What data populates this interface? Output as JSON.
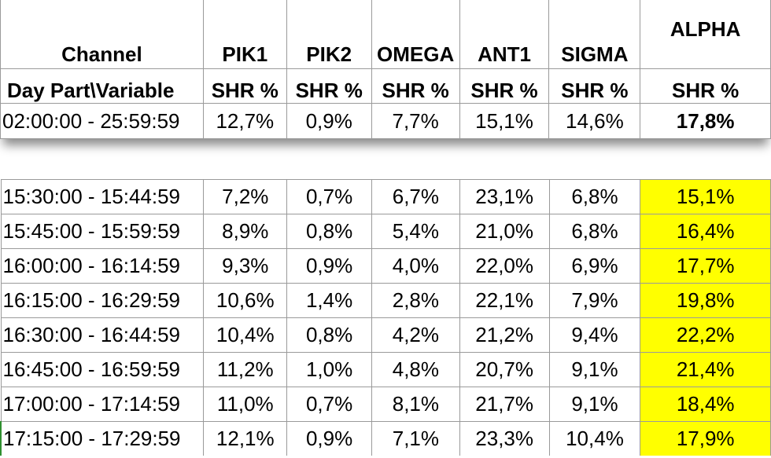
{
  "header": {
    "channel_label": "Channel",
    "day_part_label": "Day Part\\Variable",
    "channels": [
      "PIK1",
      "PIK2",
      "OMEGA",
      "ANT1",
      "SIGMA",
      "ALPHA"
    ],
    "metric_label": "SHR %"
  },
  "total_row": {
    "day_part": "02:00:00 - 25:59:59",
    "values": [
      "12,7%",
      "0,9%",
      "7,7%",
      "15,1%",
      "14,6%",
      "17,8%"
    ]
  },
  "rows": [
    {
      "day_part": "15:30:00 - 15:44:59",
      "values": [
        "7,2%",
        "0,7%",
        "6,7%",
        "23,1%",
        "6,8%",
        "15,1%"
      ]
    },
    {
      "day_part": "15:45:00 - 15:59:59",
      "values": [
        "8,9%",
        "0,8%",
        "5,4%",
        "21,0%",
        "6,8%",
        "16,4%"
      ]
    },
    {
      "day_part": "16:00:00 - 16:14:59",
      "values": [
        "9,3%",
        "0,9%",
        "4,0%",
        "22,0%",
        "6,9%",
        "17,7%"
      ]
    },
    {
      "day_part": "16:15:00 - 16:29:59",
      "values": [
        "10,6%",
        "1,4%",
        "2,8%",
        "22,1%",
        "7,9%",
        "19,8%"
      ]
    },
    {
      "day_part": "16:30:00 - 16:44:59",
      "values": [
        "10,4%",
        "0,8%",
        "4,2%",
        "21,2%",
        "9,4%",
        "22,2%"
      ]
    },
    {
      "day_part": "16:45:00 - 16:59:59",
      "values": [
        "11,2%",
        "1,0%",
        "4,8%",
        "20,7%",
        "9,1%",
        "21,4%"
      ]
    },
    {
      "day_part": "17:00:00 - 17:14:59",
      "values": [
        "11,0%",
        "0,7%",
        "8,1%",
        "21,7%",
        "9,1%",
        "18,4%"
      ]
    },
    {
      "day_part": "17:15:00 - 17:29:59",
      "values": [
        "12,1%",
        "0,9%",
        "7,1%",
        "23,3%",
        "10,4%",
        "17,9%"
      ]
    }
  ],
  "colors": {
    "highlight": "#ffff00",
    "border": "#9a9a9a"
  }
}
